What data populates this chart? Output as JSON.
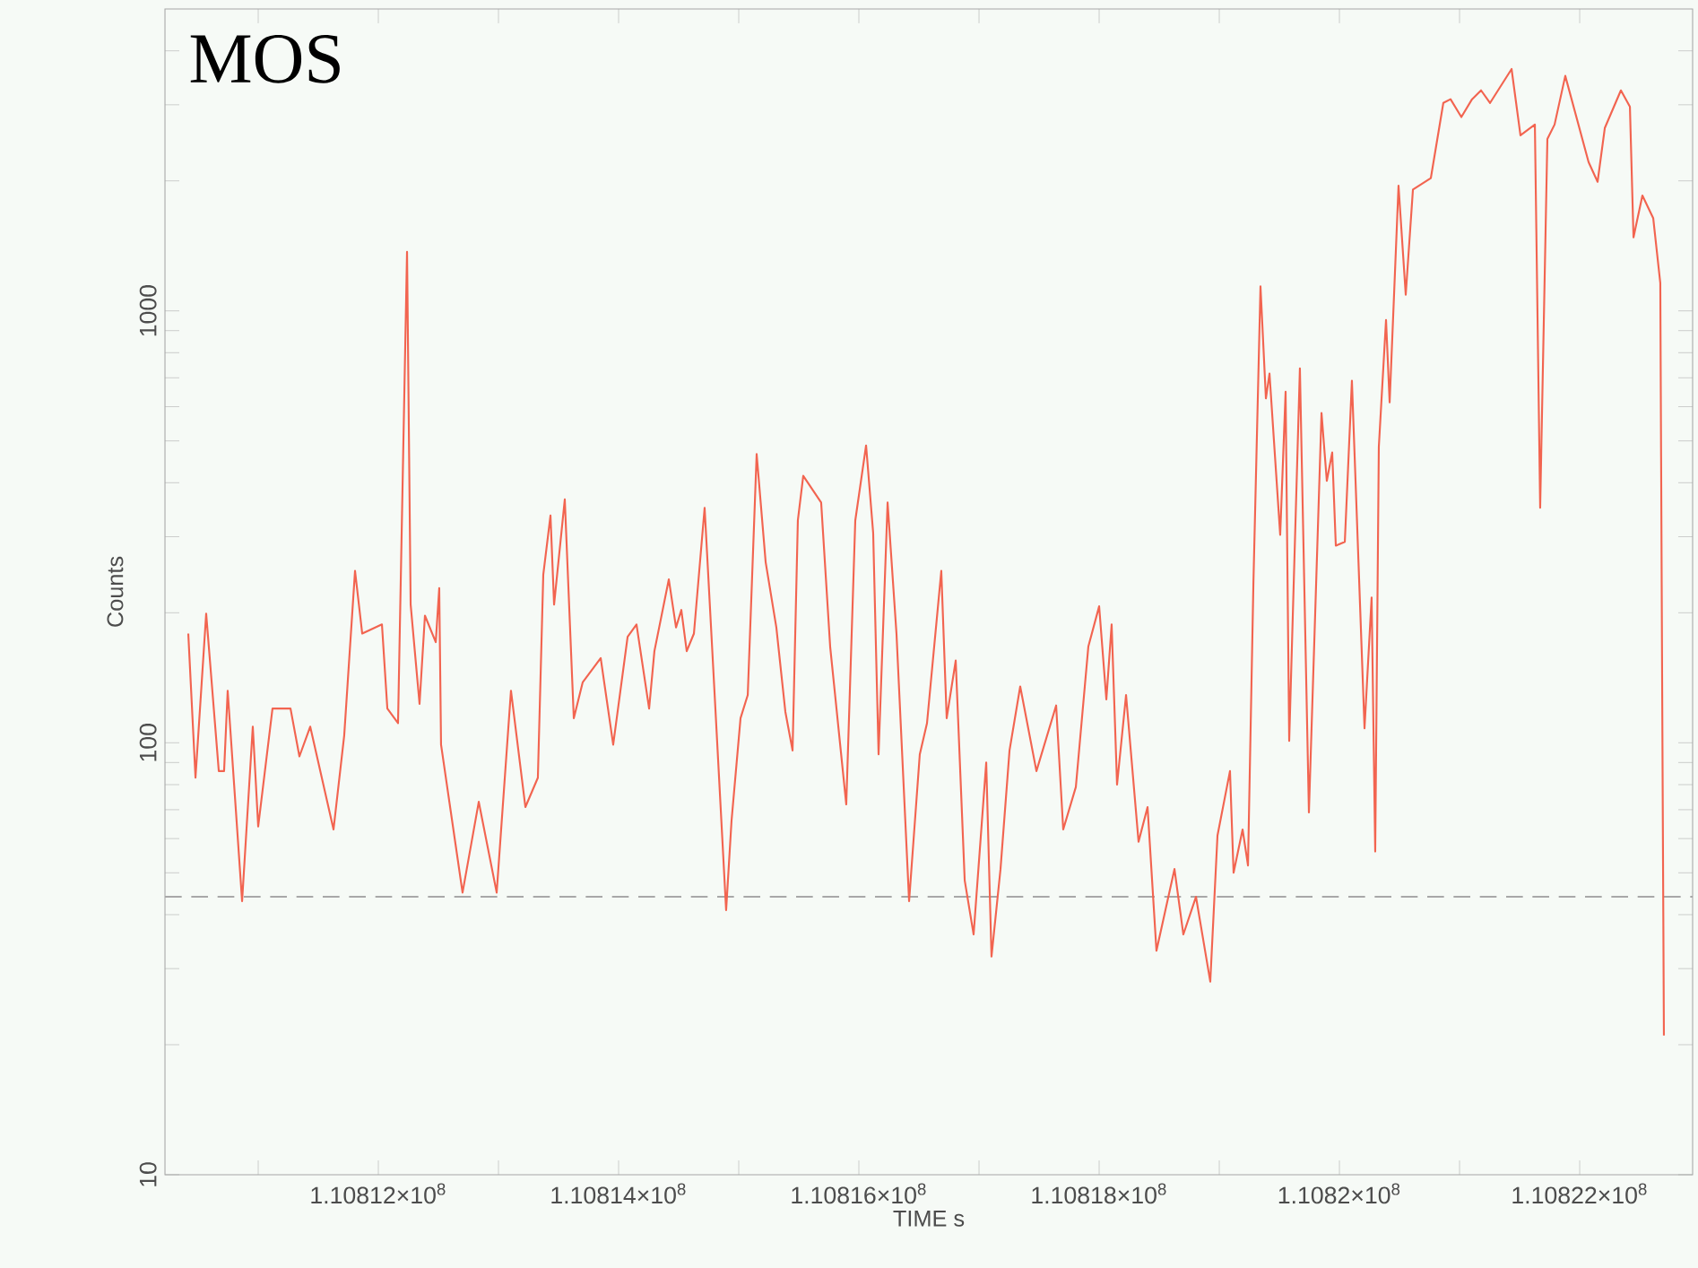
{
  "chart_data": {
    "type": "line",
    "title": "MOS",
    "xlabel": "TIME  s",
    "ylabel": "Counts",
    "xlim": [
      110810224,
      110822940
    ],
    "xticks": [
      {
        "value": 110811000,
        "label": null
      },
      {
        "value": 110812000,
        "label": "1.10812×10$^{8}$"
      },
      {
        "value": 110813000,
        "label": null
      },
      {
        "value": 110814000,
        "label": "1.10814×10$^{8}$"
      },
      {
        "value": 110815000,
        "label": null
      },
      {
        "value": 110816000,
        "label": "1.10816×10$^{8}$"
      },
      {
        "value": 110817000,
        "label": null
      },
      {
        "value": 110818000,
        "label": "1.10818×10$^{8}$"
      },
      {
        "value": 110819000,
        "label": null
      },
      {
        "value": 110820000,
        "label": "1.1082×10$^{8}$"
      },
      {
        "value": 110821000,
        "label": null
      },
      {
        "value": 110822000,
        "label": "1.10822×10$^{8}$"
      }
    ],
    "ylim": [
      10,
      5000
    ],
    "log": "y",
    "yticks": [
      10,
      {
        "value": 20,
        "label": null
      },
      {
        "value": 30,
        "label": null
      },
      {
        "value": 40,
        "label": null
      },
      {
        "value": 50,
        "label": null
      },
      {
        "value": 60,
        "label": null
      },
      {
        "value": 70,
        "label": null
      },
      {
        "value": 80,
        "label": null
      },
      {
        "value": 90,
        "label": null
      },
      100,
      {
        "value": 200,
        "label": null
      },
      {
        "value": 300,
        "label": null
      },
      {
        "value": 400,
        "label": null
      },
      {
        "value": 500,
        "label": null
      },
      {
        "value": 600,
        "label": null
      },
      {
        "value": 700,
        "label": null
      },
      {
        "value": 800,
        "label": null
      },
      {
        "value": 900,
        "label": null
      },
      1000,
      {
        "value": 2000,
        "label": null
      },
      {
        "value": 3000,
        "label": null
      },
      {
        "value": 4000,
        "label": null
      }
    ],
    "ref_lines": [
      {
        "axis": "y",
        "value": 44,
        "color": "#a8a8a8",
        "line_style": "dashed"
      }
    ],
    "series": [
      {
        "color": "#f26450",
        "x": [
          110810418,
          110810478,
          110810567,
          110810672,
          110810716,
          110810746,
          110810866,
          110810955,
          110811000,
          110811119,
          110811269,
          110811343,
          110811433,
          110811627,
          110811716,
          110811806,
          110811866,
          110812030,
          110812075,
          110812164,
          110812239,
          110812269,
          110812343,
          110812388,
          110812478,
          110812507,
          110812522,
          110812701,
          110812836,
          110812985,
          110813104,
          110813224,
          110813328,
          110813373,
          110813433,
          110813463,
          110813552,
          110813627,
          110813701,
          110813851,
          110813955,
          110814075,
          110814149,
          110814254,
          110814298,
          110814418,
          110814478,
          110814522,
          110814567,
          110814627,
          110814716,
          110814791,
          110814895,
          110814940,
          110815015,
          110815075,
          110815149,
          110815224,
          110815313,
          110815388,
          110815448,
          110815492,
          110815537,
          110815686,
          110815761,
          110815895,
          110815970,
          110816060,
          110816119,
          110816164,
          110816239,
          110816313,
          110816418,
          110816507,
          110816567,
          110816686,
          110816731,
          110816806,
          110816881,
          110816955,
          110817060,
          110817104,
          110817179,
          110817254,
          110817343,
          110817478,
          110817642,
          110817701,
          110817806,
          110817910,
          110818000,
          110818060,
          110818104,
          110818149,
          110818224,
          110818328,
          110818403,
          110818477,
          110818627,
          110818701,
          110818806,
          110818925,
          110818985,
          110819089,
          110819119,
          110819194,
          110819239,
          110819284,
          110819343,
          110819388,
          110819418,
          110819507,
          110819552,
          110819582,
          110819671,
          110819746,
          110819851,
          110819895,
          110819940,
          110819970,
          110820045,
          110820104,
          110820209,
          110820268,
          110820298,
          110820328,
          110820388,
          110820418,
          110820492,
          110820552,
          110820612,
          110820761,
          110820865,
          110820925,
          110821015,
          110821104,
          110821179,
          110821254,
          110821433,
          110821507,
          110821627,
          110821671,
          110821731,
          110821791,
          110821880,
          110822074,
          110822149,
          110822209,
          110822343,
          110822418,
          110822448,
          110822522,
          110822612,
          110822671,
          110822686,
          110822701
        ],
        "values": [
          179,
          83,
          199,
          86,
          86,
          132,
          43,
          109,
          64,
          120,
          120,
          93,
          109,
          63,
          104,
          250,
          179,
          188,
          120,
          111,
          1370,
          209,
          123,
          197,
          171,
          228,
          99,
          45,
          73,
          45,
          132,
          71,
          83,
          245,
          336,
          209,
          366,
          114,
          138,
          157,
          99,
          176,
          188,
          120,
          163,
          239,
          185,
          203,
          163,
          179,
          350,
          143,
          41,
          66,
          114,
          129,
          466,
          262,
          185,
          118,
          96,
          327,
          415,
          360,
          167,
          72,
          327,
          488,
          306,
          94,
          360,
          179,
          43,
          94,
          111,
          250,
          114,
          155,
          48,
          36,
          90,
          32,
          51,
          96,
          135,
          86,
          122,
          63,
          79,
          167,
          207,
          126,
          188,
          80,
          129,
          59,
          71,
          33,
          51,
          36,
          44,
          28,
          61,
          86,
          50,
          63,
          52,
          234,
          1140,
          627,
          716,
          303,
          650,
          101,
          736,
          69,
          580,
          404,
          470,
          286,
          292,
          689,
          108,
          217,
          56,
          484,
          953,
          614,
          1950,
          1090,
          1910,
          2030,
          3030,
          3090,
          2810,
          3090,
          3240,
          3030,
          3630,
          2550,
          2700,
          350,
          2500,
          2700,
          3500,
          2210,
          1990,
          2650,
          3240,
          2970,
          1480,
          1850,
          1640,
          1160,
          145,
          21
        ]
      }
    ]
  }
}
